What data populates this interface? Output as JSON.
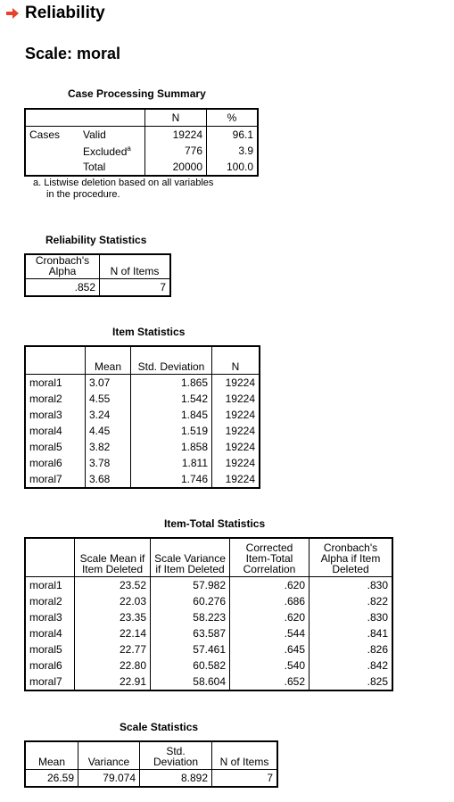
{
  "header": {
    "arrow_color": "#e8402a",
    "title": "Reliability",
    "scale_title": "Scale: moral"
  },
  "case_processing": {
    "caption": "Case Processing Summary",
    "cols": [
      "N",
      "%"
    ],
    "group_label": "Cases",
    "rows": [
      {
        "label": "Valid",
        "n": "19224",
        "pct": "96.1"
      },
      {
        "label": "Excluded",
        "sup": "a",
        "n": "776",
        "pct": "3.9"
      },
      {
        "label": "Total",
        "n": "20000",
        "pct": "100.0"
      }
    ],
    "footnote_line1": "a. Listwise deletion based on all variables",
    "footnote_line2": "in the procedure."
  },
  "reliability": {
    "caption": "Reliability Statistics",
    "col1": "Cronbach's Alpha",
    "col2": "N of Items",
    "alpha": ".852",
    "n_items": "7"
  },
  "item_stats": {
    "caption": "Item Statistics",
    "cols": [
      "Mean",
      "Std. Deviation",
      "N"
    ],
    "rows": [
      {
        "item": "moral1",
        "mean": "3.07",
        "sd": "1.865",
        "n": "19224"
      },
      {
        "item": "moral2",
        "mean": "4.55",
        "sd": "1.542",
        "n": "19224"
      },
      {
        "item": "moral3",
        "mean": "3.24",
        "sd": "1.845",
        "n": "19224"
      },
      {
        "item": "moral4",
        "mean": "4.45",
        "sd": "1.519",
        "n": "19224"
      },
      {
        "item": "moral5",
        "mean": "3.82",
        "sd": "1.858",
        "n": "19224"
      },
      {
        "item": "moral6",
        "mean": "3.78",
        "sd": "1.811",
        "n": "19224"
      },
      {
        "item": "moral7",
        "mean": "3.68",
        "sd": "1.746",
        "n": "19224"
      }
    ]
  },
  "item_total": {
    "caption": "Item-Total Statistics",
    "cols": [
      "Scale Mean if Item Deleted",
      "Scale Variance if Item Deleted",
      "Corrected Item-Total Correlation",
      "Cronbach's Alpha if Item Deleted"
    ],
    "rows": [
      {
        "item": "moral1",
        "mean": "23.52",
        "var": "57.982",
        "corr": ".620",
        "alpha": ".830"
      },
      {
        "item": "moral2",
        "mean": "22.03",
        "var": "60.276",
        "corr": ".686",
        "alpha": ".822"
      },
      {
        "item": "moral3",
        "mean": "23.35",
        "var": "58.223",
        "corr": ".620",
        "alpha": ".830"
      },
      {
        "item": "moral4",
        "mean": "22.14",
        "var": "63.587",
        "corr": ".544",
        "alpha": ".841"
      },
      {
        "item": "moral5",
        "mean": "22.77",
        "var": "57.461",
        "corr": ".645",
        "alpha": ".826"
      },
      {
        "item": "moral6",
        "mean": "22.80",
        "var": "60.582",
        "corr": ".540",
        "alpha": ".842"
      },
      {
        "item": "moral7",
        "mean": "22.91",
        "var": "58.604",
        "corr": ".652",
        "alpha": ".825"
      }
    ]
  },
  "scale_stats": {
    "caption": "Scale Statistics",
    "cols": [
      "Mean",
      "Variance",
      "Std. Deviation",
      "N of Items"
    ],
    "values": [
      "26.59",
      "79.074",
      "8.892",
      "7"
    ]
  }
}
